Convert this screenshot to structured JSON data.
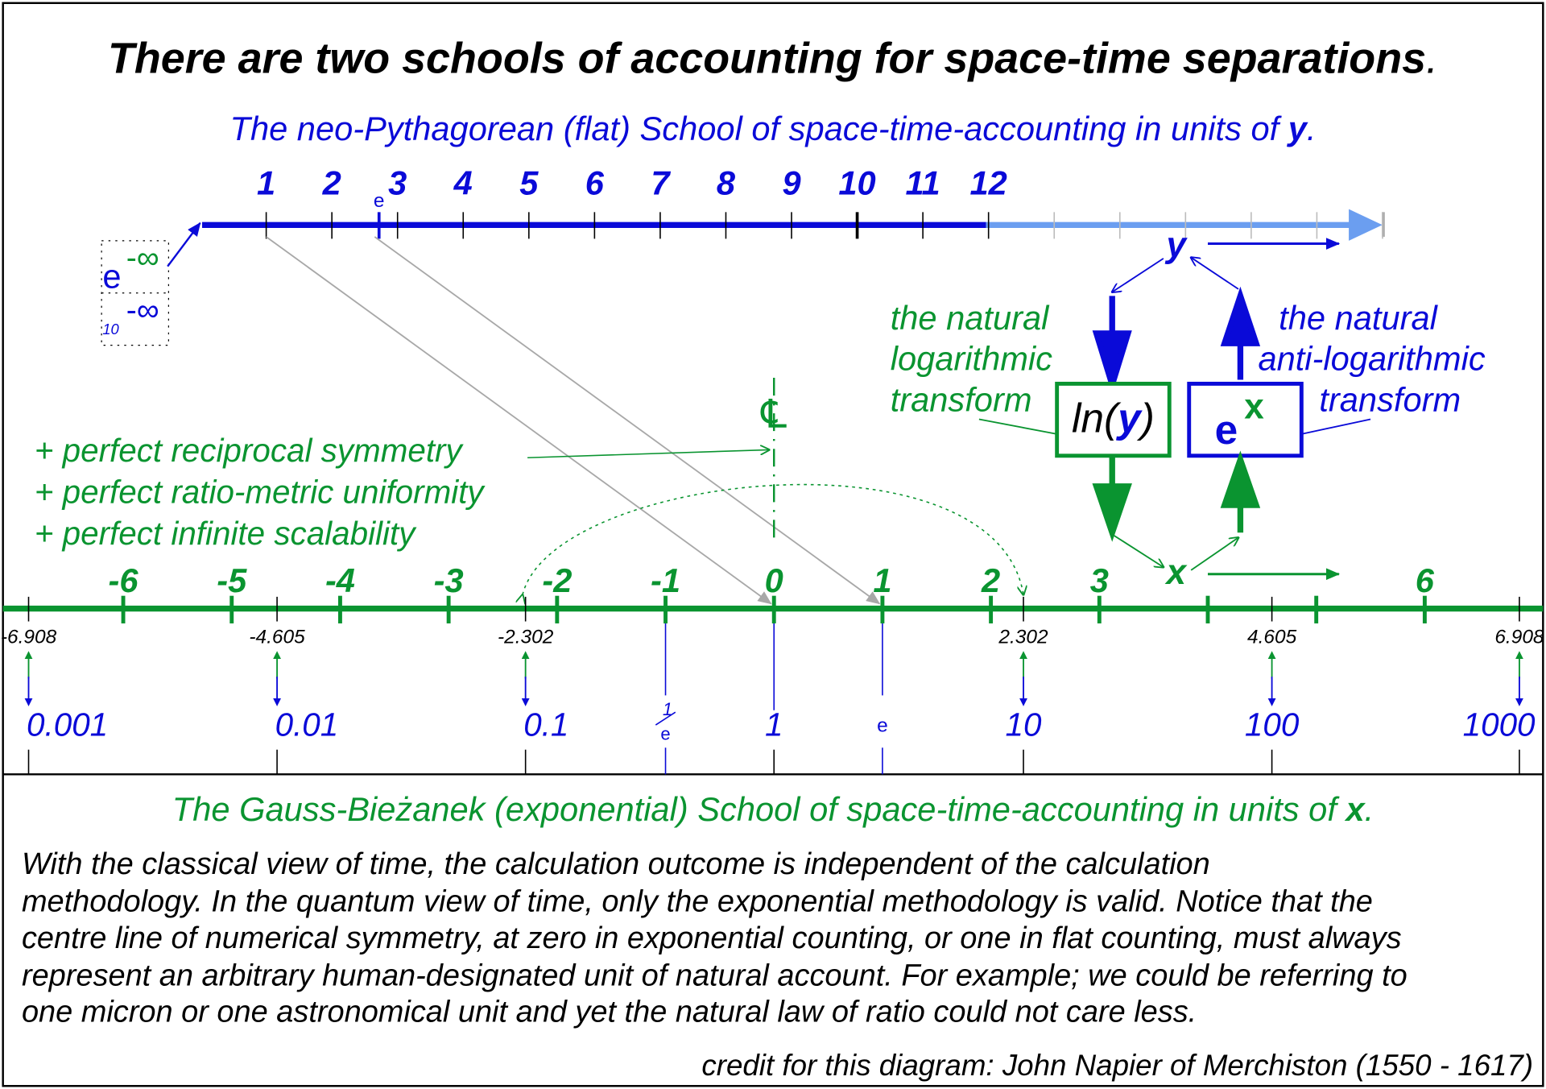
{
  "title": "There are two schools of accounting for space-time separations",
  "title_period": ".",
  "flat_school": {
    "text": "The neo-Pythagorean (flat) School of space-time-accounting in units of ",
    "unit": "y",
    "end": "."
  },
  "exp_school": {
    "text": "The Gauss-Bieżanek (exponential) School of space-time-accounting in units of ",
    "unit": "x",
    "end": "."
  },
  "flat_axis": {
    "labels": [
      "1",
      "2",
      "3",
      "4",
      "5",
      "6",
      "7",
      "8",
      "9",
      "10",
      "11",
      "12"
    ],
    "e_label": "e",
    "var": "y"
  },
  "exp_axis": {
    "labels": [
      "-6",
      "-5",
      "-4",
      "-3",
      "-2",
      "-1",
      "0",
      "1",
      "2",
      "3",
      "6"
    ],
    "values": [
      -6,
      -5,
      -4,
      -3,
      -2,
      -1,
      0,
      1,
      2,
      3,
      6
    ],
    "var": "x"
  },
  "log_values": [
    "-6.908",
    "-4.605",
    "-2.302",
    "2.302",
    "4.605",
    "6.908"
  ],
  "flat_values": [
    "0.001",
    "0.01",
    "0.1",
    "1",
    "10",
    "100",
    "1000"
  ],
  "inv_e": {
    "num": "1",
    "den": "e"
  },
  "e_mark": "e",
  "neg_inf": {
    "base_e": "e",
    "exp": "-∞",
    "base_10": "10",
    "exp10": "-∞"
  },
  "centre_symbol": "℄",
  "properties": [
    "+ perfect reciprocal symmetry",
    "+ perfect ratio-metric uniformity",
    "+ perfect infinite scalability"
  ],
  "log_transform": {
    "lines": [
      "the natural",
      "logarithmic",
      "transform"
    ],
    "box_fn": "ln(",
    "box_var": "y",
    "box_close": ")"
  },
  "antilog_transform": {
    "lines": [
      "the natural",
      "anti-logarithmic",
      "transform"
    ],
    "box_base": "e",
    "box_exp": "x"
  },
  "paragraph": [
    "With the classical view of time, the calculation outcome is independent of the calculation",
    "methodology. In the quantum view of time, only the exponential methodology is valid. Notice that the",
    "centre line of numerical symmetry, at zero in exponential counting, or one in flat counting, must always",
    "represent an arbitrary human-designated unit of natural account. For example; we could be referring to",
    "one micron or one astronomical unit and yet the natural law of ratio could not care less."
  ],
  "credit": "credit for this diagram: John Napier of Merchiston (1550 - 1617)",
  "colors": {
    "blue": "#0a0ad8",
    "light_blue": "#6b9ef0",
    "green": "#0a9430",
    "gray": "#a8a8a8",
    "black": "#000000"
  }
}
